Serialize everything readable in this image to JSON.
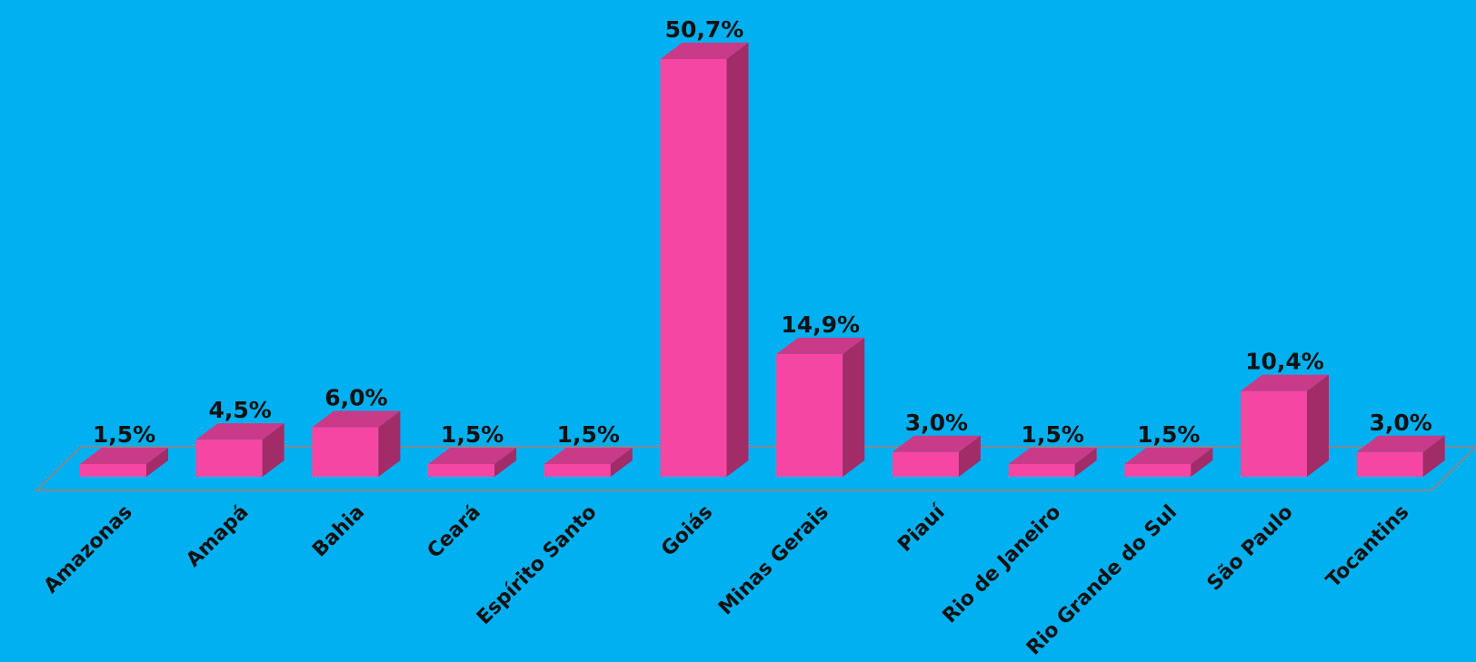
{
  "chart_data": {
    "type": "bar",
    "categories": [
      "Amazonas",
      "Amapá",
      "Bahia",
      "Ceará",
      "Espírito Santo",
      "Goiás",
      "Minas Gerais",
      "Piauí",
      "Rio de Janeiro",
      "Rio Grande do Sul",
      "São Paulo",
      "Tocantins"
    ],
    "values": [
      1.5,
      4.5,
      6.0,
      1.5,
      1.5,
      50.7,
      14.9,
      3.0,
      1.5,
      1.5,
      10.4,
      3.0
    ],
    "value_labels": [
      "1,5%",
      "4,5%",
      "6,0%",
      "1,5%",
      "1,5%",
      "50,7%",
      "14,9%",
      "3,0%",
      "1,5%",
      "1,5%",
      "10,4%",
      "3,0%"
    ],
    "title": "",
    "xlabel": "",
    "ylabel": "",
    "ylim": [
      0,
      50.7
    ],
    "grid": false,
    "legend": "none",
    "style": "3d-column"
  },
  "colors": {
    "background": "#00B0F0",
    "bar_front": "#F646A3",
    "bar_top": "#C93A88",
    "bar_side": "#A22C67",
    "floor_line": "#6E8F9E",
    "text": "#111111"
  }
}
